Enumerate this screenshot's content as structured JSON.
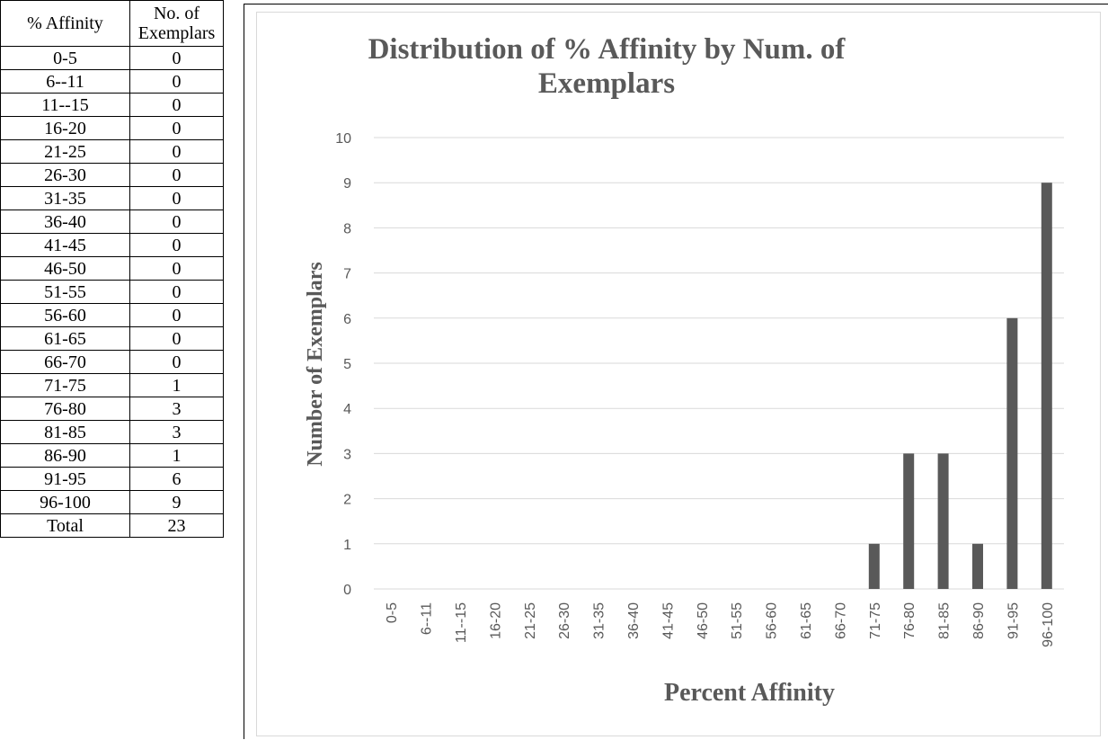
{
  "table": {
    "header_col1": "% Affinity",
    "header_col2": "No. of Exemplars",
    "rows": [
      {
        "range": "0-5",
        "count": "0"
      },
      {
        "range": "6--11",
        "count": "0"
      },
      {
        "range": "11--15",
        "count": "0"
      },
      {
        "range": "16-20",
        "count": "0"
      },
      {
        "range": "21-25",
        "count": "0"
      },
      {
        "range": "26-30",
        "count": "0"
      },
      {
        "range": "31-35",
        "count": "0"
      },
      {
        "range": "36-40",
        "count": "0"
      },
      {
        "range": "41-45",
        "count": "0"
      },
      {
        "range": "46-50",
        "count": "0"
      },
      {
        "range": "51-55",
        "count": "0"
      },
      {
        "range": "56-60",
        "count": "0"
      },
      {
        "range": "61-65",
        "count": "0"
      },
      {
        "range": "66-70",
        "count": "0"
      },
      {
        "range": "71-75",
        "count": "1"
      },
      {
        "range": "76-80",
        "count": "3"
      },
      {
        "range": "81-85",
        "count": "3"
      },
      {
        "range": "86-90",
        "count": "1"
      },
      {
        "range": "91-95",
        "count": "6"
      },
      {
        "range": "96-100",
        "count": "9"
      }
    ],
    "total_label": "Total",
    "total_value": "23"
  },
  "chart_data": {
    "type": "bar",
    "title": "Distribution of % Affinity by Num. of Exemplars",
    "title_lines": [
      "Distribution of % Affinity by Num. of",
      "Exemplars"
    ],
    "xlabel": "Percent Affinity",
    "ylabel": "Number of Exemplars",
    "categories": [
      "0-5",
      "6--11",
      "11--15",
      "16-20",
      "21-25",
      "26-30",
      "31-35",
      "36-40",
      "41-45",
      "46-50",
      "51-55",
      "56-60",
      "61-65",
      "66-70",
      "71-75",
      "76-80",
      "81-85",
      "86-90",
      "91-95",
      "96-100"
    ],
    "values": [
      0,
      0,
      0,
      0,
      0,
      0,
      0,
      0,
      0,
      0,
      0,
      0,
      0,
      0,
      1,
      3,
      3,
      1,
      6,
      9
    ],
    "ylim": [
      0,
      10
    ],
    "yticks": [
      "0",
      "1",
      "2",
      "3",
      "4",
      "5",
      "6",
      "7",
      "8",
      "9",
      "10"
    ],
    "grid": true,
    "legend": "none",
    "bar_color": "#595959",
    "grid_color": "#d9d9d9",
    "text_color": "#595959"
  }
}
